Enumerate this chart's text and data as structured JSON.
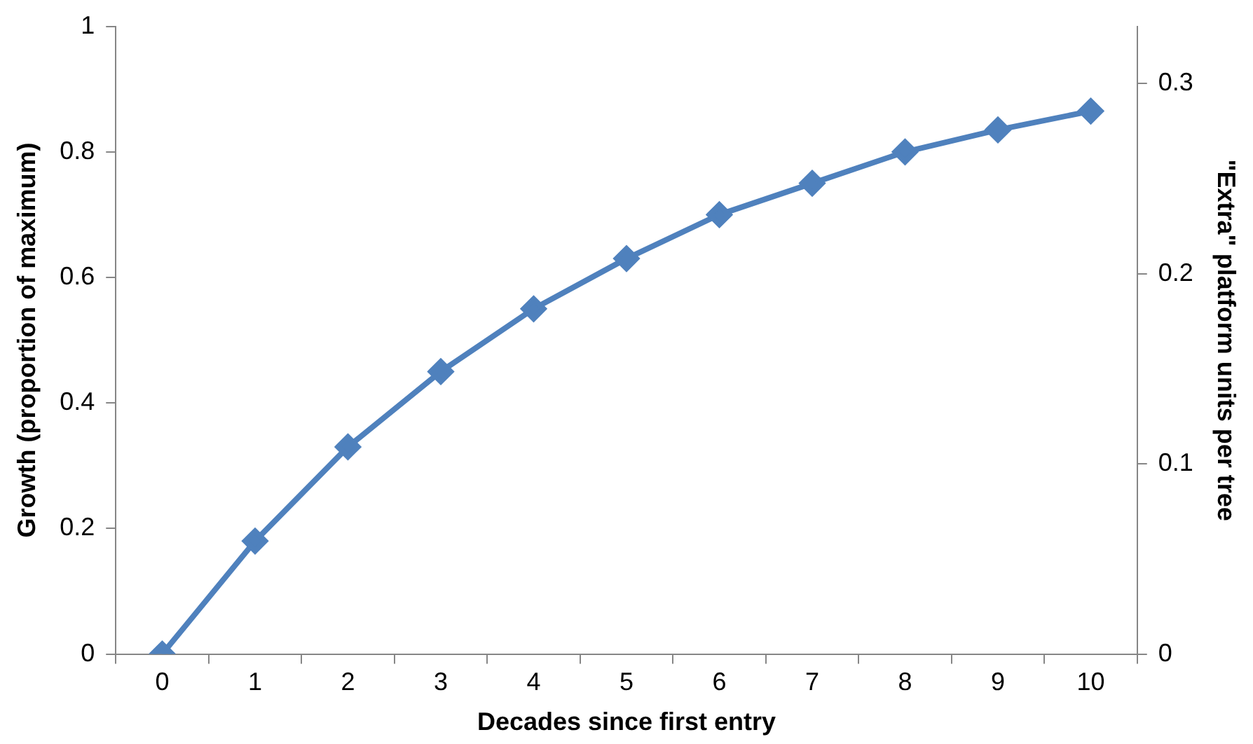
{
  "chart_data": {
    "type": "line",
    "xlabel": "Decades since first entry",
    "ylabel": "Growth (proportion of maximum)",
    "y2label": "\"Extra\" platform units per tree",
    "categories": [
      "0",
      "1",
      "2",
      "3",
      "4",
      "5",
      "6",
      "7",
      "8",
      "9",
      "10"
    ],
    "series": [
      {
        "color": "#4f81bd",
        "values": [
          0,
          0.18,
          0.33,
          0.45,
          0.55,
          0.63,
          0.7,
          0.75,
          0.8,
          0.835,
          0.865
        ]
      }
    ],
    "ylim": [
      0,
      1
    ],
    "yticks": [
      0,
      0.2,
      0.4,
      0.6,
      0.8,
      1
    ],
    "y2lim": [
      0,
      0.33
    ],
    "y2ticks": [
      0,
      0.1,
      0.2,
      0.3
    ],
    "grid": false,
    "legend": false,
    "marker": "diamond",
    "line_style": "solid"
  }
}
